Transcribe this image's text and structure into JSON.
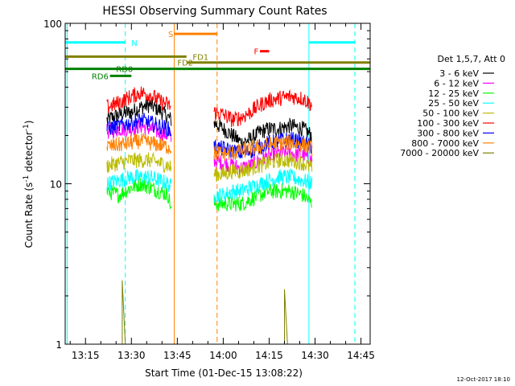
{
  "chart_data": {
    "type": "line",
    "title": "HESSI Observing Summary Count Rates",
    "xlabel": "Start Time (01-Dec-15 13:08:22)",
    "ylabel": "Count Rate (s⁻¹ detector⁻¹)",
    "ylabel_base": "Count Rate (s",
    "ylabel_sup1": "-1",
    "ylabel_mid": " detector",
    "ylabel_sup2": "-1",
    "ylabel_end": ")",
    "y_scale": "log",
    "ylim": [
      1,
      100
    ],
    "xlim": [
      "13:08:22",
      "14:48:00"
    ],
    "x_ticks": [
      "13:15",
      "13:30",
      "13:45",
      "14:00",
      "14:15",
      "14:30",
      "14:45"
    ],
    "y_ticks": [
      "1",
      "10",
      "100"
    ],
    "grid": false,
    "legend_title": "Det 1,5,7, Att 0",
    "legend_placement": "right",
    "series": [
      {
        "name": "3 - 6 keV",
        "color": "#000000",
        "segments": [
          [
            [
              "13:22",
              25
            ],
            [
              "13:26",
              27
            ],
            [
              "13:30",
              28
            ],
            [
              "13:33",
              30
            ],
            [
              "13:36",
              31
            ],
            [
              "13:39",
              29
            ],
            [
              "13:42",
              26
            ],
            [
              "13:43",
              25
            ]
          ],
          [
            [
              "13:57",
              24
            ],
            [
              "14:00",
              22
            ],
            [
              "14:03",
              20
            ],
            [
              "14:06",
              18
            ],
            [
              "14:09",
              19
            ],
            [
              "14:12",
              21
            ],
            [
              "14:15",
              22
            ],
            [
              "14:18",
              22
            ],
            [
              "14:22",
              23
            ],
            [
              "14:26",
              22
            ],
            [
              "14:29",
              20
            ]
          ]
        ]
      },
      {
        "name": "6 - 12 keV",
        "color": "#ff00ff",
        "segments": [
          [
            [
              "13:22",
              21
            ],
            [
              "13:26",
              22
            ],
            [
              "13:30",
              22
            ],
            [
              "13:33",
              23
            ],
            [
              "13:36",
              22
            ],
            [
              "13:39",
              21
            ],
            [
              "13:42",
              20
            ],
            [
              "13:43",
              19
            ]
          ],
          [
            [
              "13:57",
              14
            ],
            [
              "14:00",
              13.5
            ],
            [
              "14:03",
              13
            ],
            [
              "14:06",
              12.5
            ],
            [
              "14:09",
              13
            ],
            [
              "14:12",
              14
            ],
            [
              "14:15",
              15
            ],
            [
              "14:18",
              15.5
            ],
            [
              "14:22",
              15.5
            ],
            [
              "14:26",
              15
            ],
            [
              "14:29",
              14
            ]
          ]
        ]
      },
      {
        "name": "12 - 25 keV",
        "color": "#00ff00",
        "segments": [
          [
            [
              "13:22",
              9
            ],
            [
              "13:26",
              8.5
            ],
            [
              "13:30",
              9.5
            ],
            [
              "13:33",
              10
            ],
            [
              "13:36",
              9.5
            ],
            [
              "13:39",
              9
            ],
            [
              "13:42",
              8.5
            ],
            [
              "13:43",
              7
            ]
          ],
          [
            [
              "13:57",
              7.5
            ],
            [
              "14:00",
              7.5
            ],
            [
              "14:03",
              7.5
            ],
            [
              "14:06",
              7.5
            ],
            [
              "14:09",
              8
            ],
            [
              "14:12",
              8.5
            ],
            [
              "14:15",
              9
            ],
            [
              "14:18",
              9
            ],
            [
              "14:22",
              9
            ],
            [
              "14:26",
              8.5
            ],
            [
              "14:29",
              7.5
            ]
          ]
        ]
      },
      {
        "name": "25 - 50 keV",
        "color": "#00ffff",
        "segments": [
          [
            [
              "13:22",
              10
            ],
            [
              "13:26",
              10.5
            ],
            [
              "13:30",
              11
            ],
            [
              "13:33",
              11
            ],
            [
              "13:36",
              11
            ],
            [
              "13:39",
              10.5
            ],
            [
              "13:42",
              10
            ],
            [
              "13:43",
              9.5
            ]
          ],
          [
            [
              "13:57",
              8.5
            ],
            [
              "14:00",
              8.5
            ],
            [
              "14:03",
              9
            ],
            [
              "14:06",
              9
            ],
            [
              "14:09",
              9.5
            ],
            [
              "14:12",
              10
            ],
            [
              "14:15",
              10.5
            ],
            [
              "14:18",
              11
            ],
            [
              "14:22",
              11
            ],
            [
              "14:26",
              10.5
            ],
            [
              "14:29",
              10
            ]
          ]
        ]
      },
      {
        "name": "50 - 100 keV",
        "color": "#bbbb00",
        "segments": [
          [
            [
              "13:22",
              13
            ],
            [
              "13:26",
              13.5
            ],
            [
              "13:30",
              14
            ],
            [
              "13:33",
              14
            ],
            [
              "13:36",
              14
            ],
            [
              "13:39",
              13.5
            ],
            [
              "13:42",
              13
            ],
            [
              "13:43",
              12.5
            ]
          ],
          [
            [
              "13:57",
              11.5
            ],
            [
              "14:00",
              11.5
            ],
            [
              "14:03",
              12
            ],
            [
              "14:06",
              12
            ],
            [
              "14:09",
              12.5
            ],
            [
              "14:12",
              13
            ],
            [
              "14:15",
              13.5
            ],
            [
              "14:18",
              14
            ],
            [
              "14:22",
              14
            ],
            [
              "14:26",
              13.5
            ],
            [
              "14:29",
              12.5
            ]
          ]
        ]
      },
      {
        "name": "100 - 300 keV",
        "color": "#ff0000",
        "segments": [
          [
            [
              "13:22",
              30
            ],
            [
              "13:26",
              32
            ],
            [
              "13:30",
              35
            ],
            [
              "13:33",
              37
            ],
            [
              "13:36",
              36
            ],
            [
              "13:39",
              33
            ],
            [
              "13:42",
              31
            ],
            [
              "13:43",
              30
            ]
          ],
          [
            [
              "13:57",
              28
            ],
            [
              "14:00",
              27
            ],
            [
              "14:03",
              25
            ],
            [
              "14:06",
              26
            ],
            [
              "14:09",
              28
            ],
            [
              "14:12",
              31
            ],
            [
              "14:15",
              33
            ],
            [
              "14:18",
              34
            ],
            [
              "14:22",
              35
            ],
            [
              "14:26",
              34
            ],
            [
              "14:29",
              31
            ]
          ]
        ]
      },
      {
        "name": "300 - 800 keV",
        "color": "#0000ff",
        "segments": [
          [
            [
              "13:22",
              22
            ],
            [
              "13:26",
              23
            ],
            [
              "13:30",
              24
            ],
            [
              "13:33",
              25
            ],
            [
              "13:36",
              24
            ],
            [
              "13:39",
              23
            ],
            [
              "13:42",
              22
            ],
            [
              "13:43",
              21
            ]
          ],
          [
            [
              "13:57",
              17
            ],
            [
              "14:00",
              16.5
            ],
            [
              "14:03",
              16
            ],
            [
              "14:06",
              15.5
            ],
            [
              "14:09",
              16
            ],
            [
              "14:12",
              17
            ],
            [
              "14:15",
              18
            ],
            [
              "14:18",
              18.5
            ],
            [
              "14:22",
              19
            ],
            [
              "14:26",
              18
            ],
            [
              "14:29",
              17
            ]
          ]
        ]
      },
      {
        "name": "800 - 7000 keV",
        "color": "#ff8000",
        "segments": [
          [
            [
              "13:22",
              17
            ],
            [
              "13:26",
              17.5
            ],
            [
              "13:30",
              18
            ],
            [
              "13:33",
              18.5
            ],
            [
              "13:36",
              18
            ],
            [
              "13:39",
              17.5
            ],
            [
              "13:42",
              17
            ],
            [
              "13:43",
              16.5
            ]
          ],
          [
            [
              "13:57",
              15.5
            ],
            [
              "14:00",
              15.5
            ],
            [
              "14:03",
              15.5
            ],
            [
              "14:06",
              16
            ],
            [
              "14:09",
              16.5
            ],
            [
              "14:12",
              17
            ],
            [
              "14:15",
              17.5
            ],
            [
              "14:18",
              18
            ],
            [
              "14:22",
              18
            ],
            [
              "14:26",
              17.5
            ],
            [
              "14:29",
              16.5
            ]
          ]
        ]
      },
      {
        "name": "7000 - 20000 keV",
        "color": "#808000",
        "segments": [
          [
            [
              "13:27",
              1
            ],
            [
              "13:27",
              2.5
            ],
            [
              "13:28",
              1
            ]
          ],
          [
            [
              "14:20",
              1
            ],
            [
              "14:20",
              2.2
            ],
            [
              "14:21",
              1
            ]
          ]
        ]
      }
    ],
    "data_intervals": [
      [
        "13:21:30",
        "13:43:30"
      ],
      [
        "13:57:30",
        "14:29:30"
      ]
    ],
    "vlines": [
      {
        "x": "13:09",
        "color": "#00ffff",
        "style": "solid"
      },
      {
        "x": "13:28",
        "color": "#00ffff",
        "style": "dashed"
      },
      {
        "x": "13:44",
        "color": "#ff8000",
        "style": "solid"
      },
      {
        "x": "13:58",
        "color": "#ff8000",
        "style": "dashed"
      },
      {
        "x": "14:28",
        "color": "#00ffff",
        "style": "solid"
      },
      {
        "x": "14:43",
        "color": "#00ffff",
        "style": "dashed"
      }
    ],
    "flag_bars": [
      {
        "label": "N",
        "color": "#00ffff",
        "y": 76,
        "start": "13:08:22",
        "end": "13:28",
        "label_at": "13:30"
      },
      {
        "label": "N",
        "color": "#00ffff",
        "y": 76,
        "start": "14:28",
        "end": "14:43",
        "label_at": ""
      },
      {
        "label": "S",
        "color": "#ff8000",
        "y": 86,
        "start": "13:44",
        "end": "13:58",
        "label_at": "13:42"
      },
      {
        "label": "F",
        "color": "#ff0000",
        "y": 67,
        "start": "14:12",
        "end": "14:15",
        "label_at": "14:10"
      },
      {
        "label": "FD1",
        "color": "#808000",
        "y": 62,
        "start": "13:08:22",
        "end": "13:48",
        "label_at": "13:50"
      },
      {
        "label": "FD2",
        "color": "#808000",
        "y": 57,
        "start": "13:48",
        "end": "14:48",
        "label_at": "13:45"
      },
      {
        "label": "RD0",
        "color": "#008000",
        "y": 52,
        "start": "13:08:22",
        "end": "14:48",
        "label_at": "13:25"
      },
      {
        "label": "RD6",
        "color": "#008000",
        "y": 47,
        "start": "13:23",
        "end": "13:30",
        "label_at": "13:17"
      }
    ]
  },
  "timestamp": "12-Oct-2017 18:10"
}
